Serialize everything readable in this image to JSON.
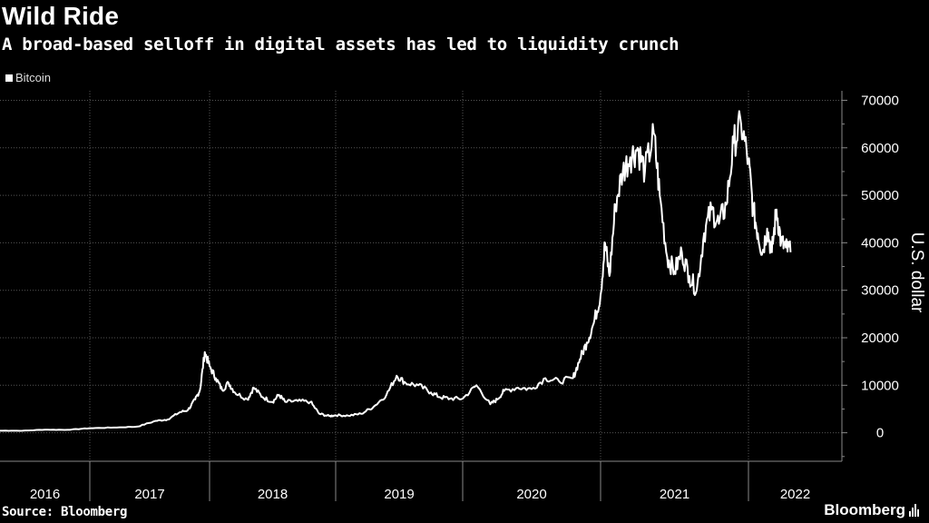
{
  "chart_data": {
    "type": "line",
    "title": "Wild Ride",
    "subtitle": "A broad-based selloff in digital assets has led to liquidity crunch",
    "ylabel": "U.S. dollar",
    "xlabel": "",
    "ylim": [
      -6000,
      72000
    ],
    "yticks": [
      0,
      10000,
      20000,
      30000,
      40000,
      50000,
      60000,
      70000
    ],
    "grid": true,
    "legend_position": "top-left",
    "x_categories": [
      "2016",
      "2017",
      "2018",
      "2019",
      "2020",
      "2021",
      "2022"
    ],
    "series": [
      {
        "name": "Bitcoin",
        "color": "#ffffff",
        "x": [
          2016.0,
          2016.25,
          2016.5,
          2016.75,
          2017.0,
          2017.2,
          2017.4,
          2017.55,
          2017.65,
          2017.75,
          2017.82,
          2017.88,
          2017.92,
          2017.96,
          2018.0,
          2018.05,
          2018.1,
          2018.15,
          2018.2,
          2018.3,
          2018.35,
          2018.42,
          2018.5,
          2018.55,
          2018.6,
          2018.7,
          2018.8,
          2018.87,
          2018.95,
          2019.0,
          2019.1,
          2019.2,
          2019.3,
          2019.4,
          2019.48,
          2019.55,
          2019.65,
          2019.75,
          2019.82,
          2019.9,
          2020.0,
          2020.1,
          2020.2,
          2020.25,
          2020.3,
          2020.4,
          2020.5,
          2020.6,
          2020.7,
          2020.8,
          2020.85,
          2020.9,
          2020.95,
          2021.0,
          2021.03,
          2021.06,
          2021.1,
          2021.15,
          2021.2,
          2021.25,
          2021.3,
          2021.36,
          2021.4,
          2021.45,
          2021.5,
          2021.55,
          2021.6,
          2021.65,
          2021.7,
          2021.75,
          2021.8,
          2021.85,
          2021.9,
          2021.95,
          2022.0,
          2022.05,
          2022.1,
          2022.15,
          2022.2,
          2022.25,
          2022.3,
          2022.35,
          2022.4,
          2022.45
        ],
        "y": [
          430,
          430,
          650,
          610,
          960,
          1100,
          1300,
          2500,
          2800,
          4300,
          4800,
          7000,
          9000,
          17000,
          14000,
          11500,
          9000,
          10500,
          8500,
          7000,
          9500,
          7500,
          6500,
          8000,
          6500,
          6700,
          6500,
          4000,
          3500,
          3700,
          3600,
          4000,
          5500,
          8000,
          12000,
          10500,
          10000,
          8500,
          7500,
          7200,
          7200,
          10000,
          6000,
          7000,
          8800,
          9500,
          9200,
          11500,
          10800,
          11500,
          15500,
          19000,
          23000,
          29000,
          40000,
          33000,
          48000,
          55000,
          58000,
          60000,
          55000,
          63000,
          50000,
          37000,
          34000,
          38000,
          33000,
          30000,
          42000,
          47000,
          44000,
          48000,
          61000,
          65000,
          57000,
          47000,
          42000,
          38000,
          43000,
          38000,
          47000,
          40000,
          39000,
          38000
        ]
      }
    ]
  },
  "footer": {
    "source": "Source: Bloomberg",
    "brand": "Bloomberg"
  },
  "colors": {
    "background": "#000000",
    "line": "#ffffff",
    "grid": "#555555"
  }
}
